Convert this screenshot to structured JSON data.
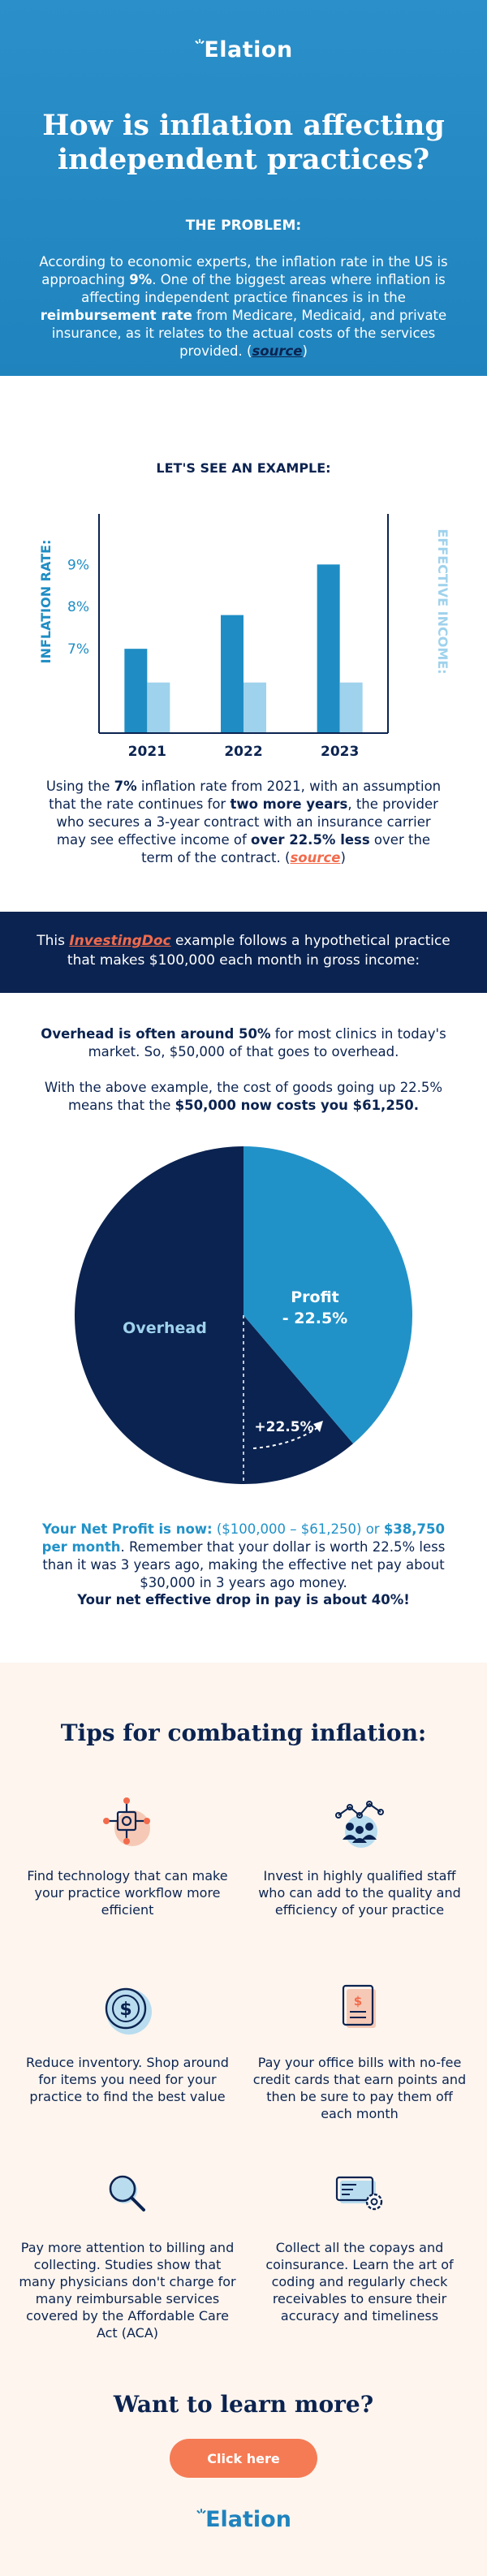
{
  "brand": {
    "name": "Elation",
    "primary": "#1f83be",
    "navy": "#0b2350",
    "accent": "#f26b4c",
    "light_blue": "#9fd2ec",
    "cream": "#fdf5ee"
  },
  "hero": {
    "title": "How is inflation affecting independent practices?",
    "problem_heading": "THE PROBLEM:",
    "problem_text": {
      "t1": "According to economic experts, the inflation rate in the US is approaching ",
      "b1": "9%",
      "t2": ". One of the biggest areas where inflation is affecting independent practice finances is in the ",
      "b2": "reimbursement rate",
      "t3": " from Medicare, Medicaid, and private insurance, as it relates to the actual costs of the services provided. (",
      "link": "source",
      "t4": ")"
    }
  },
  "example": {
    "heading": "LET'S SEE AN EXAMPLE:",
    "text": {
      "t1": "Using the ",
      "b1": "7%",
      "t2": " inflation rate from 2021, with an assumption that the rate continues for ",
      "b2": "two more years",
      "t3": ", the provider who secures a 3-year contract with an insurance carrier may see effective income of ",
      "b3": "over 22.5% less",
      "t4": " over the term of the contract. (",
      "link": "source",
      "t5": ")"
    }
  },
  "chart_data": {
    "type": "bar",
    "categories": [
      "2021",
      "2022",
      "2023"
    ],
    "series": [
      {
        "name": "INFLATION RATE:",
        "values": [
          7,
          7.8,
          9
        ],
        "color": "#1f8dc4"
      },
      {
        "name": "EFFECTIVE INCOME:",
        "values": [
          6.2,
          6.2,
          6.2
        ],
        "color": "#9fd2ec"
      }
    ],
    "ylabel_left": "INFLATION RATE:",
    "ylabel_right": "EFFECTIVE INCOME:",
    "y_ticks": [
      "7%",
      "8%",
      "9%"
    ],
    "ylim": [
      5,
      10.2
    ]
  },
  "banner": {
    "t1": "This ",
    "link": "InvestingDoc",
    "t2": " example follows a hypothetical practice that makes $100,000 each month in gross income:"
  },
  "overhead": {
    "p1": {
      "b1": "Overhead is often around 50%",
      "t1": " for most clinics in today's market. So, $50,000 of that goes to overhead."
    },
    "p2": {
      "t1": "With the above example, the cost of goods going up 22.5% means that the ",
      "b1": "$50,000 now costs you $61,250."
    },
    "pie": {
      "overhead_label": "Overhead",
      "profit_label_1": "Profit",
      "profit_label_2": "- 22.5%",
      "increase_label": "+22.5%",
      "slices": [
        {
          "name": "Overhead",
          "value": 61.25,
          "color": "#0b2350"
        },
        {
          "name": "Profit",
          "value": 38.75,
          "color": "#2192c8"
        }
      ]
    },
    "net_profit": {
      "b1": "Your Net Profit is now:",
      "t1": " ($100,000 – $61,250) or ",
      "b2": "$38,750 per month",
      "t2": ". Remember that your dollar is worth 22.5% less than it was 3 years ago, making the effective net pay about $30,000 in 3 years ago money."
    },
    "net_drop": "Your net effective drop in pay is about 40%!"
  },
  "tips": {
    "title": "Tips for combating inflation:",
    "items": [
      {
        "icon": "workflow-icon",
        "text": "Find technology that can make your practice workflow more efficient"
      },
      {
        "icon": "team-network-icon",
        "text": "Invest in highly qualified staff who can add to the quality and efficiency of your practice"
      },
      {
        "icon": "dollar-coin-icon",
        "text": "Reduce inventory. Shop around for items you need for your practice to find the best value"
      },
      {
        "icon": "bill-icon",
        "text": "Pay your office bills with no-fee credit cards that earn points and then be sure to pay them off each month"
      },
      {
        "icon": "magnifier-icon",
        "text": "Pay more attention to billing and collecting. Studies show that many physicians don't charge for many reimbursable services covered by the Affordable Care Act (ACA)"
      },
      {
        "icon": "card-settings-icon",
        "text": "Collect all the copays and coinsurance. Learn the art of coding and regularly check receivables to ensure their accuracy and timeliness"
      }
    ]
  },
  "footer": {
    "learn_title": "Want to learn more?",
    "cta_label": "Click here"
  }
}
